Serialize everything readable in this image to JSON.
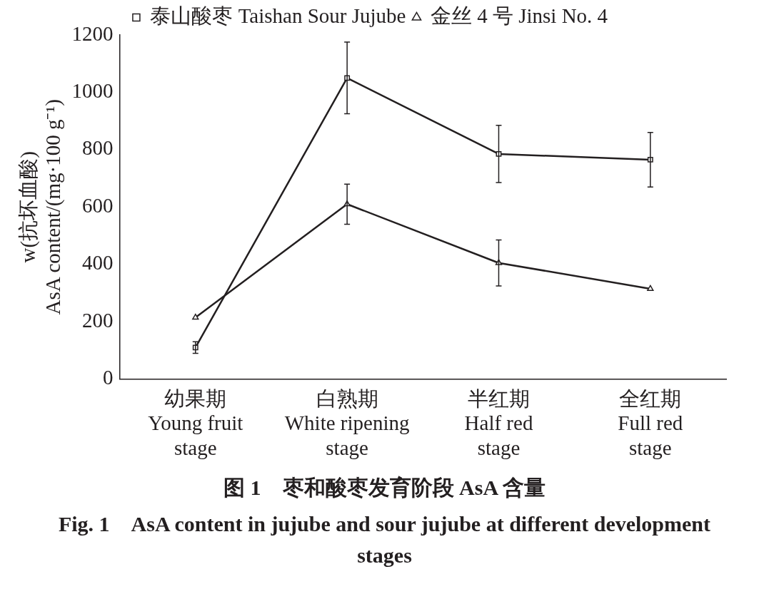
{
  "chart_data": {
    "type": "line",
    "title": "图 1　枣和酸枣发育阶段 AsA 含量",
    "subtitle": "Fig. 1　AsA content in jujube and sour jujube at different development stages",
    "ylabel": "w(抗坏血酸)\nAsA content/(mg·100 g⁻¹)",
    "categories": [
      "幼果期\nYoung fruit\nstage",
      "白熟期\nWhite ripening\nstage",
      "半红期\nHalf red\nstage",
      "全红期\nFull red\nstage"
    ],
    "series": [
      {
        "name": "泰山酸枣 Taishan Sour Jujube",
        "color": "#231f20",
        "marker": "square",
        "values": [
          110,
          1050,
          785,
          765
        ],
        "errors": [
          20,
          125,
          100,
          95
        ]
      },
      {
        "name": "金丝 4 号 Jinsi No. 4",
        "color": "#231f20",
        "marker": "triangle",
        "values": [
          215,
          610,
          405,
          315
        ],
        "errors": [
          null,
          70,
          80,
          null
        ]
      }
    ],
    "ylim": [
      0,
      1200
    ],
    "yticks": [
      0,
      200,
      400,
      600,
      800,
      1000,
      1200
    ],
    "grid": false,
    "legend": "top",
    "line_style": "solid"
  }
}
